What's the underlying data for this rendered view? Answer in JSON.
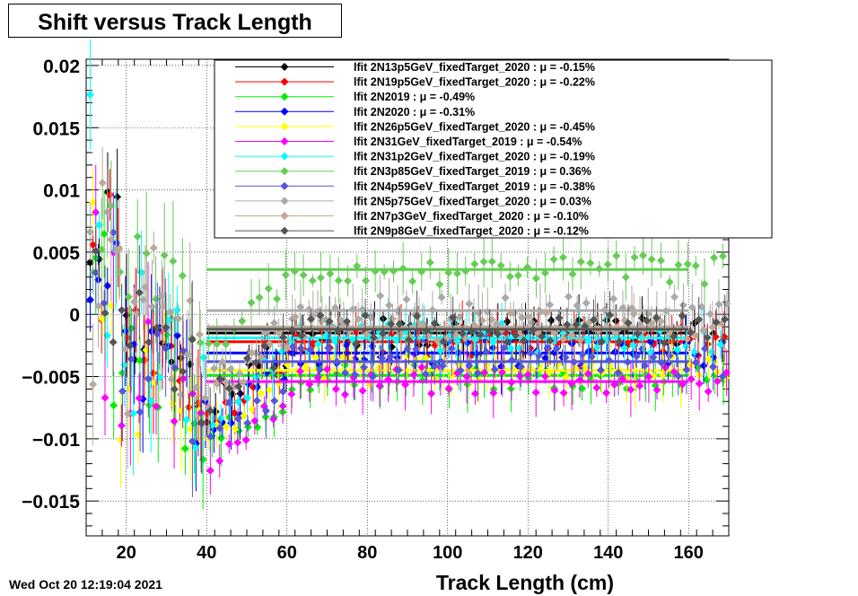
{
  "header": {
    "title": "Shift versus Track Length"
  },
  "footer": {
    "timestamp": "Wed Oct 20 12:19:04 2021"
  },
  "chart_data": {
    "type": "scatter",
    "title": "Shift versus Track Length",
    "xlabel": "Track Length (cm)",
    "ylabel": "",
    "xlim": [
      10,
      170
    ],
    "ylim": [
      -0.0178,
      0.0205
    ],
    "x_ticks": [
      20,
      40,
      60,
      80,
      100,
      120,
      140,
      160
    ],
    "y_ticks": [
      -0.015,
      -0.01,
      -0.005,
      0,
      0.005,
      0.01,
      0.015,
      0.02
    ],
    "y_tick_labels": [
      "−0.015",
      "−0.01",
      "−0.005",
      "0",
      "0.005",
      "0.01",
      "0.015",
      "0.02"
    ],
    "grid": true,
    "legend_position": "top-right",
    "fit_range": [
      40,
      160
    ],
    "series": [
      {
        "name": "lfit 2N13p5GeV_fixedTarget_2020 : μ = -0.15%",
        "color": "#000000",
        "mu": -0.0015,
        "seed": 1,
        "wide": 0.0035
      },
      {
        "name": "lfit 2N19p5GeV_fixedTarget_2020 : μ = -0.22%",
        "color": "#ff0000",
        "mu": -0.0022,
        "seed": 2,
        "wide": 0.004
      },
      {
        "name": "lfit 2N2019 : μ = -0.49%",
        "color": "#00ee00",
        "mu": -0.0049,
        "seed": 3,
        "wide": 0.007
      },
      {
        "name": "lfit 2N2020 : μ = -0.31%",
        "color": "#0000ff",
        "mu": -0.0031,
        "seed": 4,
        "wide": 0.006
      },
      {
        "name": "lfit 2N26p5GeV_fixedTarget_2020 : μ = -0.45%",
        "color": "#ffff00",
        "mu": -0.0045,
        "seed": 5,
        "wide": 0.008
      },
      {
        "name": "lfit 2N31GeV_fixedTarget_2019 : μ = -0.54%",
        "color": "#ff00ff",
        "mu": -0.0054,
        "seed": 6,
        "wide": 0.0075
      },
      {
        "name": "lfit 2N31p2GeV_fixedTarget_2020 : μ = -0.19%",
        "color": "#00ffff",
        "mu": -0.0019,
        "seed": 7,
        "wide": 0.009
      },
      {
        "name": "lfit 2N3p85GeV_fixedTarget_2019 : μ =  0.36%",
        "color": "#66cc55",
        "mu": 0.0036,
        "seed": 8,
        "wide": 0.005
      },
      {
        "name": "lfit 2N4p59GeV_fixedTarget_2019 : μ = -0.38%",
        "color": "#5555dd",
        "mu": -0.0038,
        "seed": 9,
        "wide": 0.006
      },
      {
        "name": "lfit 2N5p75GeV_fixedTarget_2020 : μ =  0.03%",
        "color": "#aaaaaa",
        "mu": 0.0003,
        "seed": 10,
        "wide": 0.004
      },
      {
        "name": "lfit 2N7p3GeV_fixedTarget_2020 : μ = -0.10%",
        "color": "#bbaa99",
        "mu": -0.001,
        "seed": 11,
        "wide": 0.01
      },
      {
        "name": "lfit 2N9p8GeV_fixedTarget_2020 : μ = -0.12%",
        "color": "#555555",
        "mu": -0.0012,
        "seed": 12,
        "wide": 0.006
      }
    ]
  }
}
